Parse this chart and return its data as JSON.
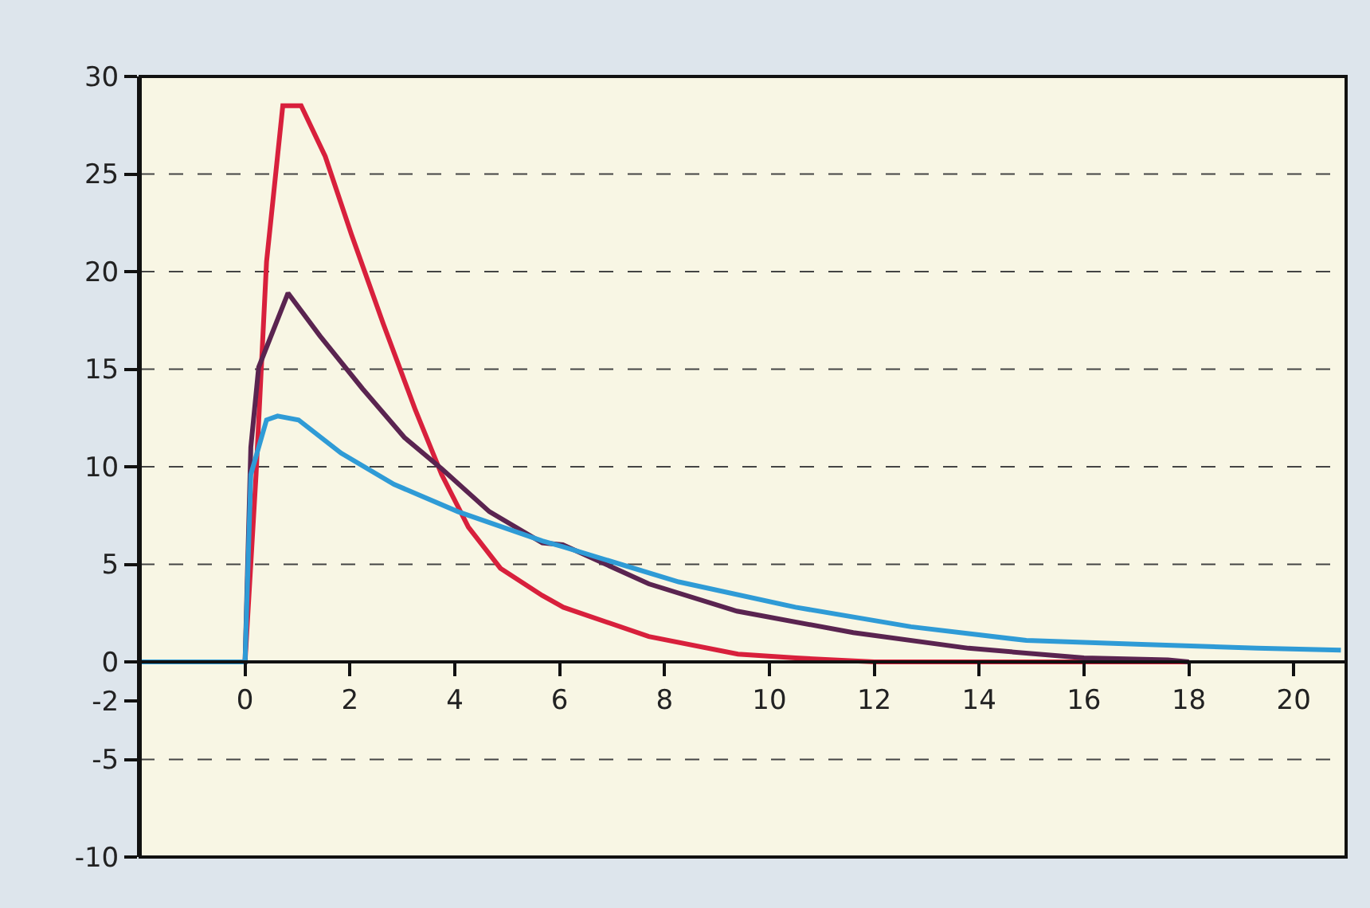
{
  "chart_data": {
    "type": "line",
    "xlim": [
      -2,
      21
    ],
    "ylim": [
      -10,
      30
    ],
    "xticks": [
      0,
      2,
      4,
      6,
      8,
      10,
      12,
      14,
      16,
      18,
      20
    ],
    "yticks": [
      30,
      25,
      20,
      15,
      10,
      5,
      0,
      -2,
      -5,
      -10
    ],
    "grid": "y",
    "marker": "none",
    "line_style": "solid",
    "series": [
      {
        "color": "#d8203c",
        "x": [
          -2,
          0,
          0.21,
          0.41,
          0.72,
          1.07,
          1.53,
          2.03,
          2.64,
          3.25,
          3.75,
          4.26,
          4.87,
          5.67,
          6.07,
          7.7,
          9.4,
          10.5,
          12,
          14,
          16,
          18
        ],
        "values": [
          0,
          0,
          9.6,
          20.5,
          28.5,
          28.5,
          25.9,
          21.9,
          17.3,
          12.9,
          9.6,
          6.9,
          4.8,
          3.4,
          2.8,
          1.3,
          0.4,
          0.2,
          0,
          0,
          0,
          0
        ]
      },
      {
        "color": "#5a2450",
        "x": [
          -2,
          0,
          0.11,
          0.26,
          0.82,
          1.43,
          2.24,
          3.04,
          3.75,
          4.66,
          5.67,
          6.06,
          7.7,
          9.38,
          11.6,
          13.8,
          16,
          17.6,
          18
        ],
        "values": [
          0,
          0,
          11,
          15.1,
          18.9,
          16.7,
          14,
          11.5,
          9.9,
          7.7,
          6.1,
          6,
          4,
          2.6,
          1.5,
          0.7,
          0.2,
          0.1,
          0
        ]
      },
      {
        "color": "#2f9bd6",
        "x": [
          -2,
          0,
          0.11,
          0.41,
          0.62,
          1.02,
          1.83,
          2.84,
          4.06,
          5.67,
          6.06,
          8.27,
          10.5,
          12.7,
          14.9,
          17.1,
          19.3,
          20.9
        ],
        "values": [
          0,
          0,
          9.6,
          12.4,
          12.6,
          12.4,
          10.7,
          9.1,
          7.7,
          6.2,
          5.9,
          4.1,
          2.8,
          1.8,
          1.1,
          0.9,
          0.7,
          0.6
        ]
      }
    ]
  }
}
